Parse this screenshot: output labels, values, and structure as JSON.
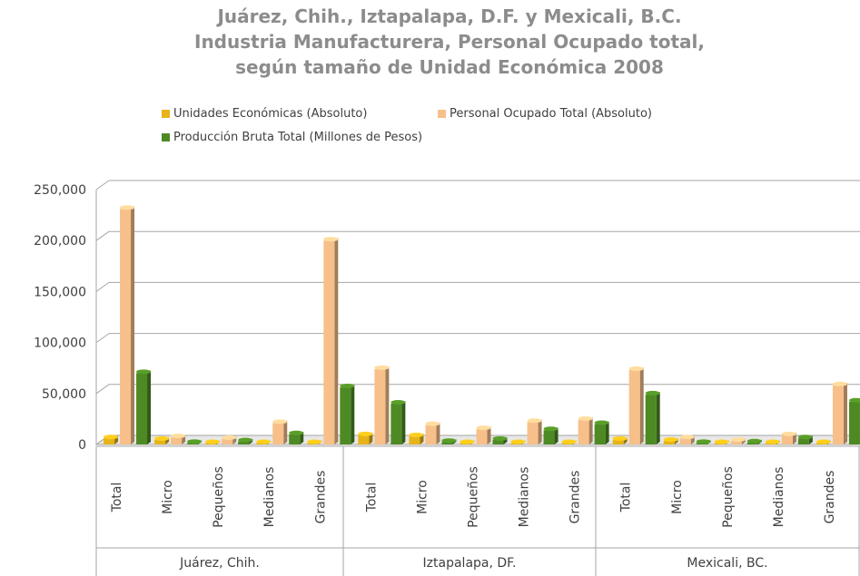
{
  "chart_data": {
    "type": "bar",
    "title_lines": [
      "Juárez, Chih., Iztapalapa, D.F. y Mexicali, B.C.",
      "Industria Manufacturera, Personal Ocupado total,",
      "según tamaño de Unidad Económica 2008"
    ],
    "groups": [
      {
        "name": "Juárez, Chih.",
        "categories": [
          "Total",
          "Micro",
          "Pequeños",
          "Medianos",
          "Grandes"
        ]
      },
      {
        "name": "Iztapalapa,  DF.",
        "categories": [
          "Total",
          "Micro",
          "Pequeños",
          "Medianos",
          "Grandes"
        ]
      },
      {
        "name": "Mexicali, BC.",
        "categories": [
          "Total",
          "Micro",
          "Pequeños",
          "Medianos",
          "Grandes"
        ]
      }
    ],
    "series": [
      {
        "name": "Unidades Económicas (Absoluto)",
        "color": "#e6b418",
        "values": [
          6000,
          4500,
          900,
          300,
          90,
          9000,
          8000,
          700,
          200,
          60,
          4500,
          3500,
          600,
          200,
          60
        ]
      },
      {
        "name": "Personal Ocupado Total (Absoluto)",
        "color": "#f7c08a",
        "values": [
          231000,
          7000,
          5500,
          21000,
          200000,
          74000,
          19000,
          15000,
          22000,
          24000,
          73000,
          6000,
          3500,
          9000,
          58000
        ]
      },
      {
        "name": "Producción Bruta Total (Millones de Pesos)",
        "color": "#4e8a24",
        "values": [
          70000,
          1500,
          3000,
          10000,
          56000,
          40000,
          2500,
          4500,
          14000,
          20000,
          49000,
          1500,
          2000,
          6000,
          42000
        ]
      }
    ],
    "y_ticks": [
      "250,000",
      "200,000",
      "150,000",
      "100,000",
      "50,000",
      "0"
    ],
    "ylim": [
      0,
      250000
    ],
    "grid": true,
    "legend_position": "top"
  }
}
